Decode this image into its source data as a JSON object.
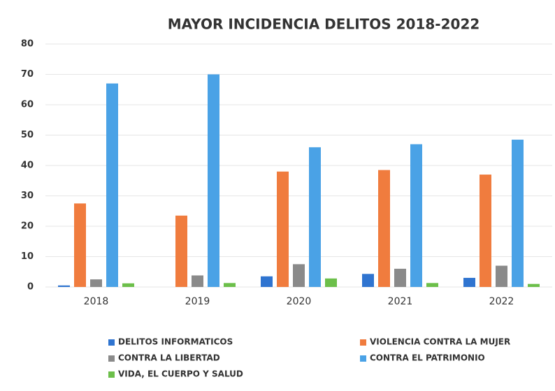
{
  "chart_data": {
    "type": "bar",
    "title": "MAYOR INCIDENCIA DELITOS 2018-2022",
    "categories": [
      "2018",
      "2019",
      "2020",
      "2021",
      "2022"
    ],
    "series": [
      {
        "name": "DELITOS INFORMATICOS",
        "color": "#2f74d0",
        "values": [
          0.5,
          0,
          3.5,
          4.3,
          3
        ]
      },
      {
        "name": "VIOLENCIA CONTRA LA MUJER",
        "color": "#f07c3e",
        "values": [
          27.5,
          23.5,
          38,
          38.5,
          37
        ]
      },
      {
        "name": "CONTRA LA LIBERTAD",
        "color": "#8a8a8a",
        "values": [
          2.5,
          3.8,
          7.5,
          6,
          7
        ]
      },
      {
        "name": "CONTRA EL PATRIMONIO",
        "color": "#4aa2e6",
        "values": [
          67,
          70,
          46,
          47,
          48.5
        ]
      },
      {
        "name": "VIDA, EL CUERPO Y SALUD",
        "color": "#6cbf4a",
        "values": [
          1.2,
          1.3,
          2.8,
          1.3,
          1
        ]
      }
    ],
    "ylim": [
      0,
      80
    ],
    "yticks": [
      0,
      10,
      20,
      30,
      40,
      50,
      60,
      70,
      80
    ],
    "grid": true
  }
}
